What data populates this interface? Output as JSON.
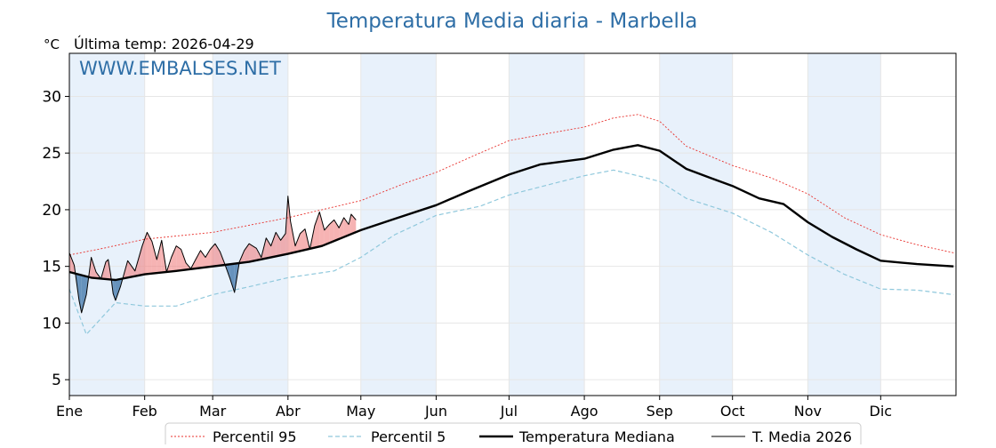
{
  "chart_data": {
    "type": "line",
    "title": "Temperatura Media diaria - Marbella",
    "unit_label": "°C",
    "subtitle": "Última temp: 2026-04-29",
    "watermark": "WWW.EMBALSES.NET",
    "ylim": [
      3.6,
      33.8
    ],
    "yticks": [
      5,
      10,
      15,
      20,
      25,
      30
    ],
    "grid": true,
    "legend_position": "bottom-center",
    "months": [
      "Ene",
      "Feb",
      "Mar",
      "Abr",
      "May",
      "Jun",
      "Jul",
      "Ago",
      "Sep",
      "Oct",
      "Nov",
      "Dic"
    ],
    "month_start_days": [
      1,
      32,
      60,
      91,
      121,
      152,
      182,
      213,
      244,
      274,
      305,
      335
    ],
    "days_in_year": 365,
    "shaded_month_bands": [
      "Ene",
      "Mar",
      "May",
      "Jul",
      "Sep",
      "Nov"
    ],
    "colors": {
      "p95": "#e8312d",
      "p5": "#8fc8dc",
      "median": "#000000",
      "current": "#000000",
      "above_fill": "#f08080",
      "below_fill": "#4f81b0",
      "band_fill": "#e8f1fb",
      "title": "#2e6ea6"
    },
    "series": [
      {
        "name": "Percentil 95",
        "key": "p95",
        "style": "dotted",
        "points": [
          [
            1,
            16.0
          ],
          [
            15,
            16.6
          ],
          [
            32,
            17.4
          ],
          [
            60,
            18.0
          ],
          [
            91,
            19.3
          ],
          [
            121,
            20.8
          ],
          [
            140,
            22.4
          ],
          [
            152,
            23.3
          ],
          [
            170,
            25.0
          ],
          [
            182,
            26.1
          ],
          [
            200,
            26.8
          ],
          [
            213,
            27.3
          ],
          [
            225,
            28.1
          ],
          [
            235,
            28.4
          ],
          [
            244,
            27.8
          ],
          [
            255,
            25.6
          ],
          [
            274,
            23.9
          ],
          [
            290,
            22.8
          ],
          [
            305,
            21.4
          ],
          [
            320,
            19.3
          ],
          [
            335,
            17.8
          ],
          [
            350,
            16.9
          ],
          [
            365,
            16.2
          ]
        ]
      },
      {
        "name": "Percentil 5",
        "key": "p5",
        "style": "dashed",
        "points": [
          [
            1,
            13.0
          ],
          [
            8,
            9.0
          ],
          [
            20,
            11.8
          ],
          [
            32,
            11.5
          ],
          [
            45,
            11.5
          ],
          [
            60,
            12.5
          ],
          [
            75,
            13.2
          ],
          [
            91,
            14.0
          ],
          [
            110,
            14.6
          ],
          [
            121,
            15.8
          ],
          [
            135,
            17.8
          ],
          [
            152,
            19.5
          ],
          [
            170,
            20.3
          ],
          [
            182,
            21.3
          ],
          [
            200,
            22.3
          ],
          [
            213,
            23.0
          ],
          [
            225,
            23.5
          ],
          [
            235,
            23.0
          ],
          [
            244,
            22.5
          ],
          [
            255,
            21.0
          ],
          [
            274,
            19.7
          ],
          [
            290,
            18.0
          ],
          [
            305,
            16.0
          ],
          [
            320,
            14.3
          ],
          [
            335,
            13.0
          ],
          [
            350,
            12.9
          ],
          [
            365,
            12.5
          ]
        ]
      },
      {
        "name": "Temperatura Mediana",
        "key": "median",
        "style": "solid-thick",
        "points": [
          [
            1,
            14.5
          ],
          [
            10,
            14.0
          ],
          [
            20,
            13.8
          ],
          [
            32,
            14.3
          ],
          [
            45,
            14.6
          ],
          [
            60,
            15.0
          ],
          [
            75,
            15.4
          ],
          [
            91,
            16.1
          ],
          [
            105,
            16.8
          ],
          [
            121,
            18.2
          ],
          [
            135,
            19.2
          ],
          [
            152,
            20.4
          ],
          [
            165,
            21.6
          ],
          [
            182,
            23.1
          ],
          [
            195,
            24.0
          ],
          [
            213,
            24.5
          ],
          [
            225,
            25.3
          ],
          [
            235,
            25.7
          ],
          [
            244,
            25.2
          ],
          [
            255,
            23.6
          ],
          [
            265,
            22.8
          ],
          [
            274,
            22.1
          ],
          [
            285,
            21.0
          ],
          [
            295,
            20.5
          ],
          [
            305,
            18.9
          ],
          [
            315,
            17.6
          ],
          [
            325,
            16.5
          ],
          [
            335,
            15.5
          ],
          [
            350,
            15.2
          ],
          [
            365,
            15.0
          ]
        ]
      },
      {
        "name": "T. Media 2026",
        "key": "current",
        "style": "solid-thin",
        "points": [
          [
            1,
            16.2
          ],
          [
            3,
            15.1
          ],
          [
            5,
            12.0
          ],
          [
            6,
            10.9
          ],
          [
            8,
            12.5
          ],
          [
            10,
            15.8
          ],
          [
            12,
            14.5
          ],
          [
            14,
            13.9
          ],
          [
            16,
            15.4
          ],
          [
            17,
            15.6
          ],
          [
            18,
            14.3
          ],
          [
            19,
            12.6
          ],
          [
            20,
            12.0
          ],
          [
            22,
            13.2
          ],
          [
            25,
            15.5
          ],
          [
            28,
            14.6
          ],
          [
            31,
            16.8
          ],
          [
            33,
            18.0
          ],
          [
            35,
            17.2
          ],
          [
            37,
            15.6
          ],
          [
            39,
            17.3
          ],
          [
            41,
            14.5
          ],
          [
            43,
            15.8
          ],
          [
            45,
            16.8
          ],
          [
            47,
            16.5
          ],
          [
            49,
            15.3
          ],
          [
            51,
            14.8
          ],
          [
            53,
            15.6
          ],
          [
            55,
            16.4
          ],
          [
            57,
            15.8
          ],
          [
            59,
            16.5
          ],
          [
            61,
            17.0
          ],
          [
            63,
            16.3
          ],
          [
            65,
            15.2
          ],
          [
            67,
            14.0
          ],
          [
            69,
            12.7
          ],
          [
            71,
            15.4
          ],
          [
            73,
            16.4
          ],
          [
            75,
            17.0
          ],
          [
            78,
            16.6
          ],
          [
            80,
            15.8
          ],
          [
            82,
            17.5
          ],
          [
            84,
            16.8
          ],
          [
            86,
            18.0
          ],
          [
            88,
            17.3
          ],
          [
            90,
            17.9
          ],
          [
            91,
            21.2
          ],
          [
            92,
            19.0
          ],
          [
            94,
            16.8
          ],
          [
            96,
            17.9
          ],
          [
            98,
            18.3
          ],
          [
            100,
            16.5
          ],
          [
            102,
            18.6
          ],
          [
            104,
            19.8
          ],
          [
            106,
            18.2
          ],
          [
            108,
            18.7
          ],
          [
            110,
            19.1
          ],
          [
            112,
            18.4
          ],
          [
            114,
            19.3
          ],
          [
            116,
            18.7
          ],
          [
            117,
            19.6
          ],
          [
            119,
            19.1
          ]
        ]
      }
    ],
    "legend": [
      {
        "label": "Percentil 95",
        "key": "p95"
      },
      {
        "label": "Percentil 5",
        "key": "p5"
      },
      {
        "label": "Temperatura Mediana",
        "key": "median"
      },
      {
        "label": "T. Media 2026",
        "key": "current"
      }
    ]
  }
}
